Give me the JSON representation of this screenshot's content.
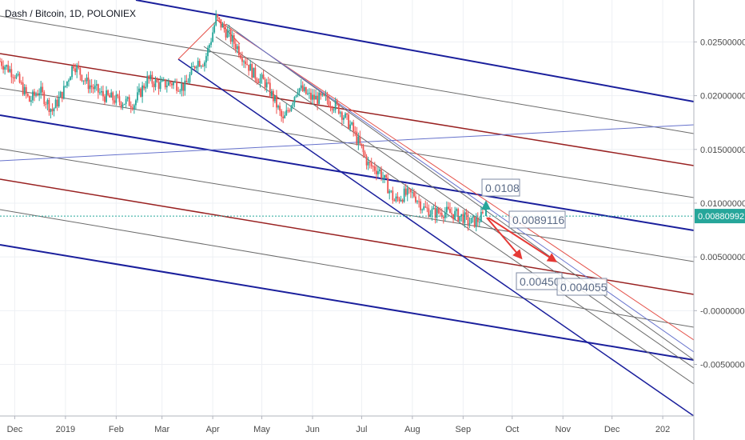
{
  "header": {
    "title": "Dash / Bitcoin, 1D, POLONIEX"
  },
  "colors": {
    "up": "#26a69a",
    "down": "#ef5350",
    "wick": "#5d6066",
    "navy": "#1a1f9c",
    "maroon": "#992222",
    "gray": "#6b6b6b",
    "lightblue": "#6672cc",
    "pitch_red": "#e5534b",
    "price_line": "#26a69a",
    "arrow_red": "#e53935",
    "arrow_green": "#26a69a"
  },
  "current_price": {
    "value": 0.0088,
    "label": "0.00880992"
  },
  "chart_data": {
    "type": "candlestick",
    "title": "Dash / Bitcoin, 1D, POLONIEX",
    "x_tick_labels": [
      "Dec",
      "2019",
      "Feb",
      "Mar",
      "Apr",
      "May",
      "Jun",
      "Jul",
      "Aug",
      "Sep",
      "Oct",
      "Nov",
      "Dec",
      "202"
    ],
    "x_tick_dates": [
      "2018-12-01",
      "2019-01-01",
      "2019-02-01",
      "2019-03-01",
      "2019-04-01",
      "2019-05-01",
      "2019-06-01",
      "2019-07-01",
      "2019-08-01",
      "2019-09-01",
      "2019-10-01",
      "2019-11-01",
      "2019-12-01",
      "2020-01-01"
    ],
    "x_range": [
      "2018-11-22",
      "2020-01-20"
    ],
    "y_tick_labels": [
      "0.02500000",
      "0.02000000",
      "0.01500000",
      "0.01000000",
      "0.00500000",
      "-0.00000000",
      "-0.00500000"
    ],
    "y_ticks": [
      0.025,
      0.02,
      0.015,
      0.01,
      0.005,
      0.0,
      -0.005
    ],
    "ylim": [
      -0.0098,
      0.0289
    ],
    "price_path": [
      [
        "2018-11-22",
        0.0232
      ],
      [
        "2018-12-01",
        0.022
      ],
      [
        "2018-12-10",
        0.0195
      ],
      [
        "2018-12-16",
        0.0205
      ],
      [
        "2018-12-24",
        0.0186
      ],
      [
        "2018-12-31",
        0.0205
      ],
      [
        "2019-01-06",
        0.023
      ],
      [
        "2019-01-14",
        0.0212
      ],
      [
        "2019-01-24",
        0.02
      ],
      [
        "2019-02-03",
        0.0195
      ],
      [
        "2019-02-12",
        0.0193
      ],
      [
        "2019-02-20",
        0.0215
      ],
      [
        "2019-02-28",
        0.021
      ],
      [
        "2019-03-07",
        0.0212
      ],
      [
        "2019-03-15",
        0.0208
      ],
      [
        "2019-03-22",
        0.0232
      ],
      [
        "2019-03-27",
        0.0232
      ],
      [
        "2019-03-31",
        0.0253
      ],
      [
        "2019-04-03",
        0.0272
      ],
      [
        "2019-04-08",
        0.0262
      ],
      [
        "2019-04-16",
        0.0245
      ],
      [
        "2019-04-26",
        0.022
      ],
      [
        "2019-05-03",
        0.0212
      ],
      [
        "2019-05-09",
        0.0195
      ],
      [
        "2019-05-14",
        0.0176
      ],
      [
        "2019-05-18",
        0.019
      ],
      [
        "2019-05-23",
        0.0208
      ],
      [
        "2019-05-31",
        0.0198
      ],
      [
        "2019-06-10",
        0.0196
      ],
      [
        "2019-06-17",
        0.0188
      ],
      [
        "2019-06-25",
        0.017
      ],
      [
        "2019-07-01",
        0.015
      ],
      [
        "2019-07-05",
        0.0136
      ],
      [
        "2019-07-12",
        0.013
      ],
      [
        "2019-07-17",
        0.0115
      ],
      [
        "2019-07-21",
        0.0102
      ],
      [
        "2019-07-27",
        0.0108
      ],
      [
        "2019-08-02",
        0.0108
      ],
      [
        "2019-08-08",
        0.0095
      ],
      [
        "2019-08-14",
        0.0091
      ],
      [
        "2019-08-20",
        0.0092
      ],
      [
        "2019-08-26",
        0.009
      ],
      [
        "2019-09-01",
        0.0087
      ],
      [
        "2019-09-05",
        0.0082
      ],
      [
        "2019-09-09",
        0.0083
      ],
      [
        "2019-09-13",
        0.0088
      ]
    ],
    "annotations": [
      {
        "label": "0.0108",
        "value": 0.0108,
        "color": "green"
      },
      {
        "label": "0.0089116",
        "value": 0.0089116,
        "color": "neutral"
      },
      {
        "label": "0.004508",
        "value": 0.004508,
        "color": "red"
      },
      {
        "label": "0.004055",
        "value": 0.004055,
        "color": "red"
      }
    ],
    "grid": true,
    "legend": "none"
  }
}
